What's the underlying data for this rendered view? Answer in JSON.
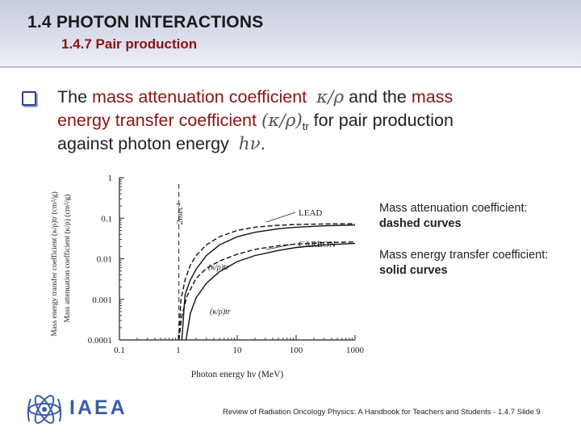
{
  "header": {
    "title": "1.4 PHOTON INTERACTIONS",
    "subtitle": "1.4.7 Pair production"
  },
  "bullet": {
    "l1_part1": "The ",
    "l1_red": "mass attenuation coefficient",
    "l1_math": "κ/ρ",
    "l1_part2": " and the ",
    "l1_red2": "mass",
    "l2_red": "energy transfer coefficient",
    "l2_math": "(κ/ρ)",
    "l2_sub": "tr",
    "l2_part": " for pair production",
    "l3_part": "against photon energy",
    "l3_math": "hν",
    "l3_end": "."
  },
  "notes": {
    "dashed_label": "Mass attenuation coefficient:",
    "dashed_value": "dashed curves",
    "solid_label": "Mass energy transfer coefficient:",
    "solid_value": "solid curves"
  },
  "footer": {
    "text": "Review of Radiation Oncology Physics: A Handbook for Teachers and Students - 1.4.7 Slide 9",
    "logo": "IAEA"
  },
  "chart_data": {
    "type": "line",
    "xscale": "log",
    "yscale": "log",
    "xlim": [
      0.1,
      1000
    ],
    "ylim": [
      0.0001,
      1
    ],
    "xticks": [
      "0.1",
      "1",
      "10",
      "100",
      "1000"
    ],
    "yticks": [
      "1",
      "0.1",
      "0.01",
      "0.001",
      "0.0001"
    ],
    "xlabel": "Photon energy hν (MeV)",
    "ylabel_outer": "Mass energy transfer coefficient (κ/ρ)tr (cm²/g)",
    "ylabel_inner": "Mass attenuation coefficient (κ/ρ) (cm²/g)",
    "threshold_label": "2mec²",
    "threshold_x": 1.022,
    "annotations": [
      "LEAD",
      "CARBON",
      "(κ/ρ)tr",
      "(κ/ρ)tr"
    ],
    "series": [
      {
        "name": "LEAD",
        "style": "dashed",
        "x": [
          1.022,
          1.1,
          1.3,
          1.6,
          2,
          3,
          5,
          10,
          20,
          50,
          100,
          300,
          1000
        ],
        "y": [
          0.0001,
          0.0009,
          0.003,
          0.007,
          0.012,
          0.022,
          0.035,
          0.05,
          0.06,
          0.067,
          0.07,
          0.072,
          0.073
        ]
      },
      {
        "name": "LEAD",
        "style": "solid",
        "x": [
          1.15,
          1.3,
          1.6,
          2,
          3,
          5,
          10,
          20,
          50,
          100,
          300,
          1000
        ],
        "y": [
          0.0001,
          0.0013,
          0.003,
          0.0055,
          0.012,
          0.022,
          0.035,
          0.045,
          0.055,
          0.06,
          0.065,
          0.068
        ]
      },
      {
        "name": "CARBON",
        "style": "dashed",
        "x": [
          1.022,
          1.15,
          1.4,
          2,
          3,
          5,
          10,
          20,
          50,
          100,
          300,
          1000
        ],
        "y": [
          0.0001,
          0.0004,
          0.0012,
          0.0033,
          0.0058,
          0.0088,
          0.013,
          0.017,
          0.021,
          0.023,
          0.025,
          0.026
        ]
      },
      {
        "name": "CARBON",
        "style": "solid",
        "x": [
          1.35,
          1.6,
          2,
          3,
          5,
          10,
          20,
          50,
          100,
          300,
          1000
        ],
        "y": [
          0.0001,
          0.00045,
          0.0011,
          0.0025,
          0.0048,
          0.0085,
          0.012,
          0.016,
          0.019,
          0.022,
          0.024
        ]
      }
    ]
  }
}
